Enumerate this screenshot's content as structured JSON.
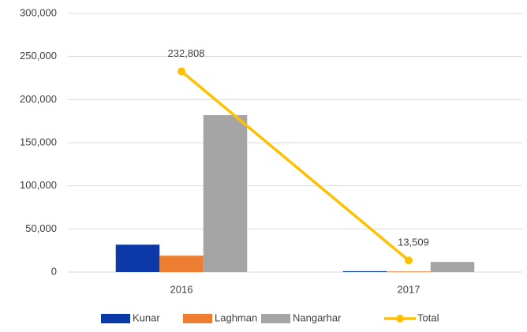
{
  "chart_data": {
    "type": "bar",
    "categories": [
      "2016",
      "2017"
    ],
    "series": [
      {
        "name": "Kunar",
        "color": "#0b3aa8",
        "values": [
          31800,
          1000
        ]
      },
      {
        "name": "Laghman",
        "color": "#ed7d31",
        "values": [
          19000,
          700
        ]
      },
      {
        "name": "Nangarhar",
        "color": "#a5a5a5",
        "values": [
          182000,
          11800
        ]
      },
      {
        "name": "Total",
        "type": "line",
        "color": "#ffc000",
        "values": [
          232808,
          13509
        ],
        "value_labels": [
          "232,808",
          "13,509"
        ]
      }
    ],
    "ylim": [
      0,
      300000
    ],
    "yticks": [
      0,
      {
        "value": 50000,
        "label": "50,000"
      },
      {
        "value": 100000,
        "label": "100,000"
      },
      {
        "value": 150000,
        "label": "150,000"
      },
      {
        "value": 200000,
        "label": "200,000"
      },
      {
        "value": 250000,
        "label": "250,000"
      },
      {
        "value": 300000,
        "label": "300,000"
      }
    ],
    "grid": true,
    "legend": "bottom"
  }
}
